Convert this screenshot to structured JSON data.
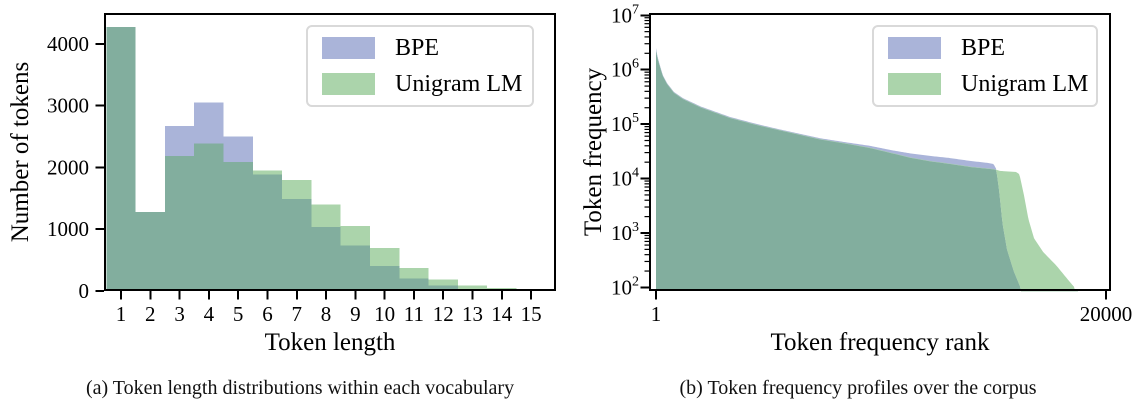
{
  "captions": {
    "a": "(a) Token length distributions within each vocabulary",
    "b": "(b) Token frequency profiles over the corpus"
  },
  "colors": {
    "bpe_fill": "#aab4d9",
    "unigram_fill": "#abd4ab",
    "overlap_fill": "#82ae9e",
    "spine": "#000000",
    "legend_border": "#d9d9d9"
  },
  "chart_data": [
    {
      "type": "bar",
      "title": "",
      "xlabel": "Token length",
      "ylabel": "Number of tokens",
      "categories": [
        1,
        2,
        3,
        4,
        5,
        6,
        7,
        8,
        9,
        10,
        11,
        12,
        13,
        14,
        15
      ],
      "series": [
        {
          "name": "BPE",
          "values": [
            4270,
            1280,
            2670,
            3050,
            2500,
            1900,
            1500,
            1050,
            750,
            420,
            210,
            100,
            40,
            25,
            10
          ]
        },
        {
          "name": "Unigram LM",
          "values": [
            4270,
            1280,
            2200,
            2400,
            2100,
            1950,
            1800,
            1400,
            1050,
            700,
            370,
            190,
            90,
            45,
            20
          ]
        }
      ],
      "xlim": [
        0.5,
        15.5
      ],
      "ylim": [
        0,
        4500
      ],
      "y_ticks": [
        0,
        1000,
        2000,
        3000,
        4000
      ],
      "x_ticks": [
        1,
        2,
        3,
        4,
        5,
        6,
        7,
        8,
        9,
        10,
        11,
        12,
        13,
        14,
        15
      ],
      "grid": false,
      "legend_position": "upper right"
    },
    {
      "type": "area",
      "title": "",
      "xlabel": "Token frequency rank",
      "ylabel": "Token frequency",
      "x_scale": "linear",
      "y_scale": "log",
      "xlim": [
        1,
        20000
      ],
      "ylim": [
        100,
        10000000
      ],
      "x_ticks": [
        1,
        20000
      ],
      "y_tick_exponents": [
        2,
        3,
        4,
        5,
        6,
        7
      ],
      "grid": false,
      "legend_position": "upper right",
      "series": [
        {
          "name": "BPE",
          "points": [
            [
              1,
              2500000
            ],
            [
              60,
              1800000
            ],
            [
              150,
              1300000
            ],
            [
              300,
              800000
            ],
            [
              500,
              560000
            ],
            [
              800,
              390000
            ],
            [
              1200,
              300000
            ],
            [
              2000,
              210000
            ],
            [
              3300,
              135000
            ],
            [
              4500,
              100000
            ],
            [
              5500,
              80000
            ],
            [
              6500,
              65000
            ],
            [
              7300,
              55000
            ],
            [
              8500,
              46000
            ],
            [
              9500,
              40000
            ],
            [
              10500,
              33000
            ],
            [
              11300,
              29000
            ],
            [
              12200,
              26000
            ],
            [
              13000,
              24000
            ],
            [
              14000,
              21000
            ],
            [
              14700,
              19500
            ],
            [
              15000,
              18500
            ],
            [
              15120,
              15000
            ],
            [
              15250,
              6000
            ],
            [
              15400,
              1500
            ],
            [
              15600,
              500
            ],
            [
              15900,
              200
            ],
            [
              16200,
              100
            ]
          ]
        },
        {
          "name": "Unigram LM",
          "points": [
            [
              1,
              2300000
            ],
            [
              60,
              1700000
            ],
            [
              150,
              1250000
            ],
            [
              300,
              780000
            ],
            [
              500,
              545000
            ],
            [
              800,
              380000
            ],
            [
              1200,
              292000
            ],
            [
              2000,
              204000
            ],
            [
              3300,
              131000
            ],
            [
              4500,
              97000
            ],
            [
              5500,
              78000
            ],
            [
              6500,
              63000
            ],
            [
              7300,
              53000
            ],
            [
              8500,
              44000
            ],
            [
              9500,
              37000
            ],
            [
              10500,
              29500
            ],
            [
              11300,
              24500
            ],
            [
              12200,
              21000
            ],
            [
              13000,
              19000
            ],
            [
              14000,
              16500
            ],
            [
              15000,
              15000
            ],
            [
              15300,
              13800
            ],
            [
              16000,
              13200
            ],
            [
              16150,
              12000
            ],
            [
              16350,
              5000
            ],
            [
              16550,
              1800
            ],
            [
              16800,
              800
            ],
            [
              17200,
              450
            ],
            [
              17800,
              250
            ],
            [
              18300,
              140
            ],
            [
              18600,
              100
            ]
          ]
        }
      ]
    }
  ]
}
